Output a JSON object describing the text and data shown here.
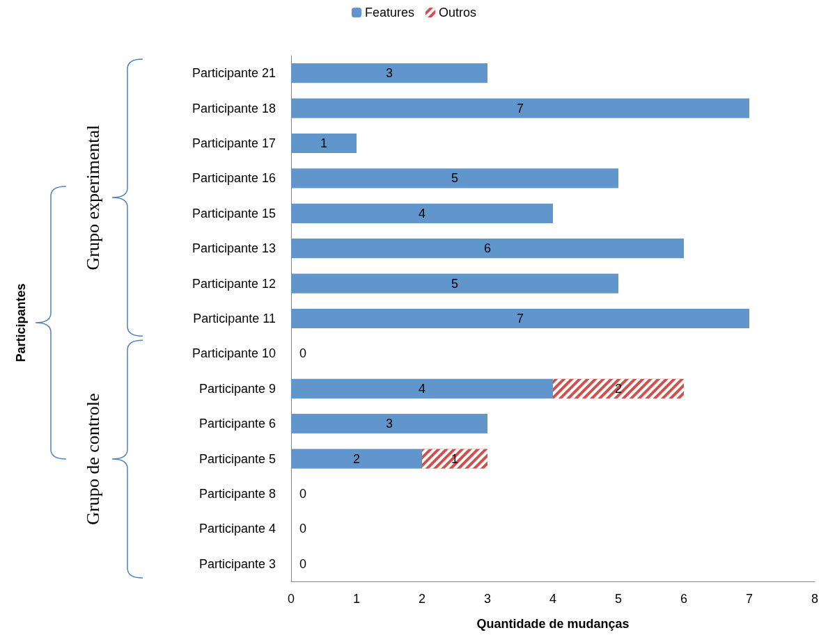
{
  "chart_data": {
    "type": "bar",
    "orientation": "horizontal",
    "stacked": true,
    "categories": [
      "Participante 21",
      "Participante 18",
      "Participante 17",
      "Participante 16",
      "Participante 15",
      "Participante 13",
      "Participante 12",
      "Participante 11",
      "Participante 10",
      "Participante 9",
      "Participante 6",
      "Participante 5",
      "Participante 8",
      "Participante 4",
      "Participante 3"
    ],
    "series": [
      {
        "name": "Features",
        "color": "#6096cc",
        "values": [
          3,
          7,
          1,
          5,
          4,
          6,
          5,
          7,
          0,
          4,
          3,
          2,
          0,
          0,
          0
        ]
      },
      {
        "name": "Outros",
        "color": "#d0504d",
        "values": [
          null,
          null,
          null,
          null,
          null,
          null,
          null,
          null,
          null,
          2,
          null,
          1,
          null,
          null,
          null
        ]
      }
    ],
    "xlim": [
      0,
      8
    ],
    "xticks": [
      0,
      1,
      2,
      3,
      4,
      5,
      6,
      7,
      8
    ],
    "xlabel": "Quantidade de mudanças",
    "annotations": [
      "Grupo experimental",
      "Grupo de controle",
      "Participantes"
    ],
    "data_labels": true,
    "grid": false,
    "legend": "top"
  }
}
